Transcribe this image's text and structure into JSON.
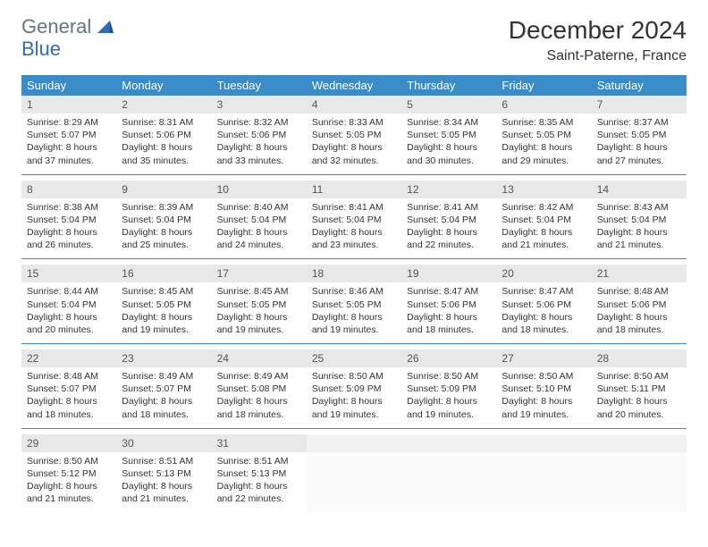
{
  "logo": {
    "line1": "General",
    "line2": "Blue"
  },
  "title": "December 2024",
  "location": "Saint-Paterne, France",
  "colors": {
    "headerBlue": "#3b8bc8",
    "logoGray": "#6b7280",
    "logoBlue": "#2f6fb0",
    "dayNumBg": "#e8e8e8",
    "borderBlue": "#3b8bc8"
  },
  "dayNames": [
    "Sunday",
    "Monday",
    "Tuesday",
    "Wednesday",
    "Thursday",
    "Friday",
    "Saturday"
  ],
  "weeks": [
    [
      {
        "n": "1",
        "sr": "8:29 AM",
        "ss": "5:07 PM",
        "dl": "8 hours and 37 minutes."
      },
      {
        "n": "2",
        "sr": "8:31 AM",
        "ss": "5:06 PM",
        "dl": "8 hours and 35 minutes."
      },
      {
        "n": "3",
        "sr": "8:32 AM",
        "ss": "5:06 PM",
        "dl": "8 hours and 33 minutes."
      },
      {
        "n": "4",
        "sr": "8:33 AM",
        "ss": "5:05 PM",
        "dl": "8 hours and 32 minutes."
      },
      {
        "n": "5",
        "sr": "8:34 AM",
        "ss": "5:05 PM",
        "dl": "8 hours and 30 minutes."
      },
      {
        "n": "6",
        "sr": "8:35 AM",
        "ss": "5:05 PM",
        "dl": "8 hours and 29 minutes."
      },
      {
        "n": "7",
        "sr": "8:37 AM",
        "ss": "5:05 PM",
        "dl": "8 hours and 27 minutes."
      }
    ],
    [
      {
        "n": "8",
        "sr": "8:38 AM",
        "ss": "5:04 PM",
        "dl": "8 hours and 26 minutes."
      },
      {
        "n": "9",
        "sr": "8:39 AM",
        "ss": "5:04 PM",
        "dl": "8 hours and 25 minutes."
      },
      {
        "n": "10",
        "sr": "8:40 AM",
        "ss": "5:04 PM",
        "dl": "8 hours and 24 minutes."
      },
      {
        "n": "11",
        "sr": "8:41 AM",
        "ss": "5:04 PM",
        "dl": "8 hours and 23 minutes."
      },
      {
        "n": "12",
        "sr": "8:41 AM",
        "ss": "5:04 PM",
        "dl": "8 hours and 22 minutes."
      },
      {
        "n": "13",
        "sr": "8:42 AM",
        "ss": "5:04 PM",
        "dl": "8 hours and 21 minutes."
      },
      {
        "n": "14",
        "sr": "8:43 AM",
        "ss": "5:04 PM",
        "dl": "8 hours and 21 minutes."
      }
    ],
    [
      {
        "n": "15",
        "sr": "8:44 AM",
        "ss": "5:04 PM",
        "dl": "8 hours and 20 minutes."
      },
      {
        "n": "16",
        "sr": "8:45 AM",
        "ss": "5:05 PM",
        "dl": "8 hours and 19 minutes."
      },
      {
        "n": "17",
        "sr": "8:45 AM",
        "ss": "5:05 PM",
        "dl": "8 hours and 19 minutes."
      },
      {
        "n": "18",
        "sr": "8:46 AM",
        "ss": "5:05 PM",
        "dl": "8 hours and 19 minutes."
      },
      {
        "n": "19",
        "sr": "8:47 AM",
        "ss": "5:06 PM",
        "dl": "8 hours and 18 minutes."
      },
      {
        "n": "20",
        "sr": "8:47 AM",
        "ss": "5:06 PM",
        "dl": "8 hours and 18 minutes."
      },
      {
        "n": "21",
        "sr": "8:48 AM",
        "ss": "5:06 PM",
        "dl": "8 hours and 18 minutes."
      }
    ],
    [
      {
        "n": "22",
        "sr": "8:48 AM",
        "ss": "5:07 PM",
        "dl": "8 hours and 18 minutes."
      },
      {
        "n": "23",
        "sr": "8:49 AM",
        "ss": "5:07 PM",
        "dl": "8 hours and 18 minutes."
      },
      {
        "n": "24",
        "sr": "8:49 AM",
        "ss": "5:08 PM",
        "dl": "8 hours and 18 minutes."
      },
      {
        "n": "25",
        "sr": "8:50 AM",
        "ss": "5:09 PM",
        "dl": "8 hours and 19 minutes."
      },
      {
        "n": "26",
        "sr": "8:50 AM",
        "ss": "5:09 PM",
        "dl": "8 hours and 19 minutes."
      },
      {
        "n": "27",
        "sr": "8:50 AM",
        "ss": "5:10 PM",
        "dl": "8 hours and 19 minutes."
      },
      {
        "n": "28",
        "sr": "8:50 AM",
        "ss": "5:11 PM",
        "dl": "8 hours and 20 minutes."
      }
    ],
    [
      {
        "n": "29",
        "sr": "8:50 AM",
        "ss": "5:12 PM",
        "dl": "8 hours and 21 minutes."
      },
      {
        "n": "30",
        "sr": "8:51 AM",
        "ss": "5:13 PM",
        "dl": "8 hours and 21 minutes."
      },
      {
        "n": "31",
        "sr": "8:51 AM",
        "ss": "5:13 PM",
        "dl": "8 hours and 22 minutes."
      },
      null,
      null,
      null,
      null
    ]
  ],
  "labels": {
    "sunrise": "Sunrise:",
    "sunset": "Sunset:",
    "daylight": "Daylight:"
  }
}
